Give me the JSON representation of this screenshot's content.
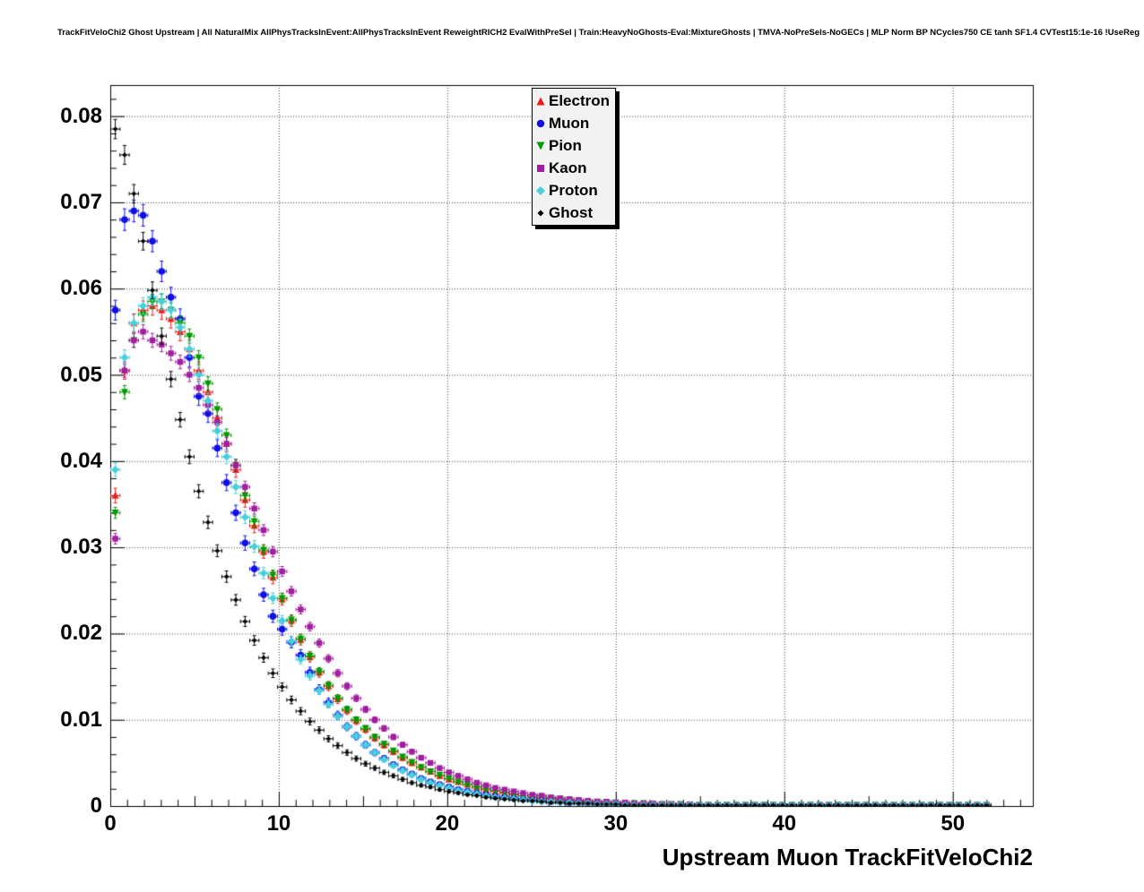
{
  "header": {
    "title": "TrackFitVeloChi2 Ghost Upstream | All NaturalMix AllPhysTracksInEvent:AllPhysTracksInEvent ReweightRICH2 EvalWithPreSel | Train:HeavyNoGhosts-Eval:MixtureGhosts | TMVA-NoPreSels-NoGECs | MLP Norm BP NCycles750 CE tanh SF1.4 CVTest15:1e-16 !UseReg"
  },
  "chart_data": {
    "type": "scatter",
    "title": "TrackFitVeloChi2 Ghost Upstream",
    "xlabel": "Upstream Muon TrackFitVeloChi2",
    "ylabel": "",
    "xlim": [
      0,
      54.75
    ],
    "ylim": [
      0,
      0.0836
    ],
    "grid": true,
    "legend_position": "top-center",
    "xticks": [
      0,
      10,
      20,
      30,
      40,
      50
    ],
    "xtick_labels": [
      "0",
      "10",
      "20",
      "30",
      "40",
      "50"
    ],
    "yticks": [
      0,
      0.01,
      0.02,
      0.03,
      0.04,
      0.05,
      0.06,
      0.07,
      0.08
    ],
    "ytick_labels": [
      "0",
      "0.01",
      "0.02",
      "0.03",
      "0.04",
      "0.05",
      "0.06",
      "0.07",
      "0.08"
    ],
    "x_start": 0.3,
    "x_step": 0.55,
    "series": [
      {
        "name": "Electron",
        "color": "#ed1c16",
        "marker": "triangle-up",
        "err_k": 0.0045,
        "tail_value": 0.0001,
        "tail_end_x": 52,
        "values": [
          0.036,
          0.0505,
          0.056,
          0.0575,
          0.058,
          0.0575,
          0.0565,
          0.055,
          0.053,
          0.0505,
          0.048,
          0.045,
          0.042,
          0.039,
          0.0355,
          0.0325,
          0.0295,
          0.0265,
          0.024,
          0.0215,
          0.0193,
          0.0173,
          0.0155,
          0.0139,
          0.0124,
          0.0111,
          0.0099,
          0.0089,
          0.0079,
          0.0071,
          0.0063,
          0.0056,
          0.005,
          0.0045,
          0.004,
          0.0035,
          0.0031,
          0.0028,
          0.0025,
          0.0022,
          0.0019,
          0.0017,
          0.0015,
          0.0013,
          0.0012,
          0.001,
          0.0009,
          0.0008,
          0.0007,
          0.0006,
          0.0005,
          0.0005,
          0.0004,
          0.0004,
          0.0003,
          0.0003,
          0.0002,
          0.0002,
          0.0002,
          0.0002
        ]
      },
      {
        "name": "Muon",
        "color": "#0f0fe8",
        "marker": "circle",
        "err_k": 0.0048,
        "tail_value": 0.0001,
        "tail_end_x": 52,
        "values": [
          0.0575,
          0.068,
          0.069,
          0.0685,
          0.0655,
          0.062,
          0.059,
          0.0565,
          0.052,
          0.0475,
          0.0455,
          0.0415,
          0.0375,
          0.034,
          0.0305,
          0.0275,
          0.0245,
          0.022,
          0.0205,
          0.019,
          0.0175,
          0.0155,
          0.0135,
          0.012,
          0.0105,
          0.0092,
          0.0081,
          0.0071,
          0.0062,
          0.0055,
          0.0048,
          0.0042,
          0.0037,
          0.0032,
          0.0028,
          0.0025,
          0.0022,
          0.0019,
          0.0017,
          0.0015,
          0.0013,
          0.0011,
          0.001,
          0.0009,
          0.0008,
          0.0007,
          0.0006,
          0.0005,
          0.0005,
          0.0004,
          0.0004,
          0.0003,
          0.0003,
          0.0002,
          0.0002,
          0.0002,
          0.0002
        ]
      },
      {
        "name": "Pion",
        "color": "#009900",
        "marker": "triangle-down",
        "err_k": 0.0035,
        "tail_value": 0.0001,
        "tail_end_x": 52,
        "values": [
          0.034,
          0.048,
          0.054,
          0.057,
          0.0585,
          0.0585,
          0.0575,
          0.056,
          0.0545,
          0.052,
          0.049,
          0.046,
          0.043,
          0.0395,
          0.036,
          0.033,
          0.0297,
          0.0268,
          0.0241,
          0.0216,
          0.0194,
          0.0174,
          0.0156,
          0.014,
          0.0125,
          0.0112,
          0.01,
          0.009,
          0.008,
          0.0072,
          0.0064,
          0.0057,
          0.0051,
          0.0045,
          0.004,
          0.0036,
          0.0032,
          0.0028,
          0.0025,
          0.0022,
          0.002,
          0.0018,
          0.0016,
          0.0014,
          0.0012,
          0.0011,
          0.001,
          0.0009,
          0.0008,
          0.0007,
          0.0006,
          0.0005,
          0.0005,
          0.0004,
          0.0004,
          0.0003,
          0.0003,
          0.0003,
          0.0002,
          0.0002,
          0.0002,
          0.0002
        ]
      },
      {
        "name": "Kaon",
        "color": "#a11f9f",
        "marker": "square",
        "err_k": 0.0035,
        "tail_value": 0.0001,
        "tail_end_x": 52,
        "values": [
          0.031,
          0.0505,
          0.054,
          0.055,
          0.054,
          0.0535,
          0.0525,
          0.0515,
          0.05,
          0.0485,
          0.0465,
          0.0445,
          0.042,
          0.0395,
          0.037,
          0.0345,
          0.032,
          0.0295,
          0.0272,
          0.0249,
          0.0228,
          0.0208,
          0.0189,
          0.0171,
          0.0154,
          0.0139,
          0.0125,
          0.0112,
          0.01,
          0.009,
          0.008,
          0.0071,
          0.0063,
          0.0056,
          0.005,
          0.0044,
          0.0039,
          0.0035,
          0.0031,
          0.0027,
          0.0024,
          0.0021,
          0.0019,
          0.0017,
          0.0015,
          0.0013,
          0.0012,
          0.001,
          0.0009,
          0.0008,
          0.0007,
          0.0006,
          0.0005,
          0.0005,
          0.0004,
          0.0004,
          0.0003,
          0.0003,
          0.0003,
          0.0002,
          0.0002,
          0.0002,
          0.0002
        ]
      },
      {
        "name": "Proton",
        "color": "#47cfdc",
        "marker": "diamond",
        "err_k": 0.004,
        "tail_value": 0.0001,
        "tail_end_x": 52,
        "values": [
          0.039,
          0.052,
          0.056,
          0.058,
          0.059,
          0.0585,
          0.0575,
          0.0555,
          0.053,
          0.05,
          0.047,
          0.0435,
          0.0405,
          0.037,
          0.0335,
          0.0301,
          0.027,
          0.0241,
          0.0215,
          0.0191,
          0.017,
          0.0151,
          0.0134,
          0.0118,
          0.0104,
          0.0092,
          0.0081,
          0.0071,
          0.0062,
          0.0054,
          0.0047,
          0.0041,
          0.0036,
          0.0031,
          0.0027,
          0.0024,
          0.0021,
          0.0018,
          0.0016,
          0.0014,
          0.0012,
          0.001,
          0.0009,
          0.0008,
          0.0007,
          0.0006,
          0.0005,
          0.0005,
          0.0004,
          0.0004,
          0.0003,
          0.0003,
          0.0002,
          0.0002,
          0.0002
        ]
      },
      {
        "name": "Ghost",
        "color": "#000000",
        "marker": "small-diamond",
        "err_k": 0.004,
        "tail_value": 0.0001,
        "tail_end_x": 52,
        "values": [
          0.0785,
          0.0755,
          0.071,
          0.0655,
          0.0598,
          0.0545,
          0.0495,
          0.0448,
          0.0405,
          0.0365,
          0.0329,
          0.0296,
          0.0266,
          0.0239,
          0.0214,
          0.0192,
          0.0172,
          0.0154,
          0.0138,
          0.0123,
          0.011,
          0.0098,
          0.0088,
          0.0078,
          0.007,
          0.0062,
          0.0055,
          0.0049,
          0.0044,
          0.0039,
          0.0035,
          0.0031,
          0.0027,
          0.0024,
          0.0022,
          0.0019,
          0.0017,
          0.0015,
          0.0013,
          0.0012,
          0.001,
          0.0009,
          0.0008,
          0.0007,
          0.0006,
          0.0006,
          0.0005,
          0.0004,
          0.0004,
          0.0003,
          0.0003,
          0.0003,
          0.0002,
          0.0002,
          0.0002
        ]
      }
    ]
  }
}
